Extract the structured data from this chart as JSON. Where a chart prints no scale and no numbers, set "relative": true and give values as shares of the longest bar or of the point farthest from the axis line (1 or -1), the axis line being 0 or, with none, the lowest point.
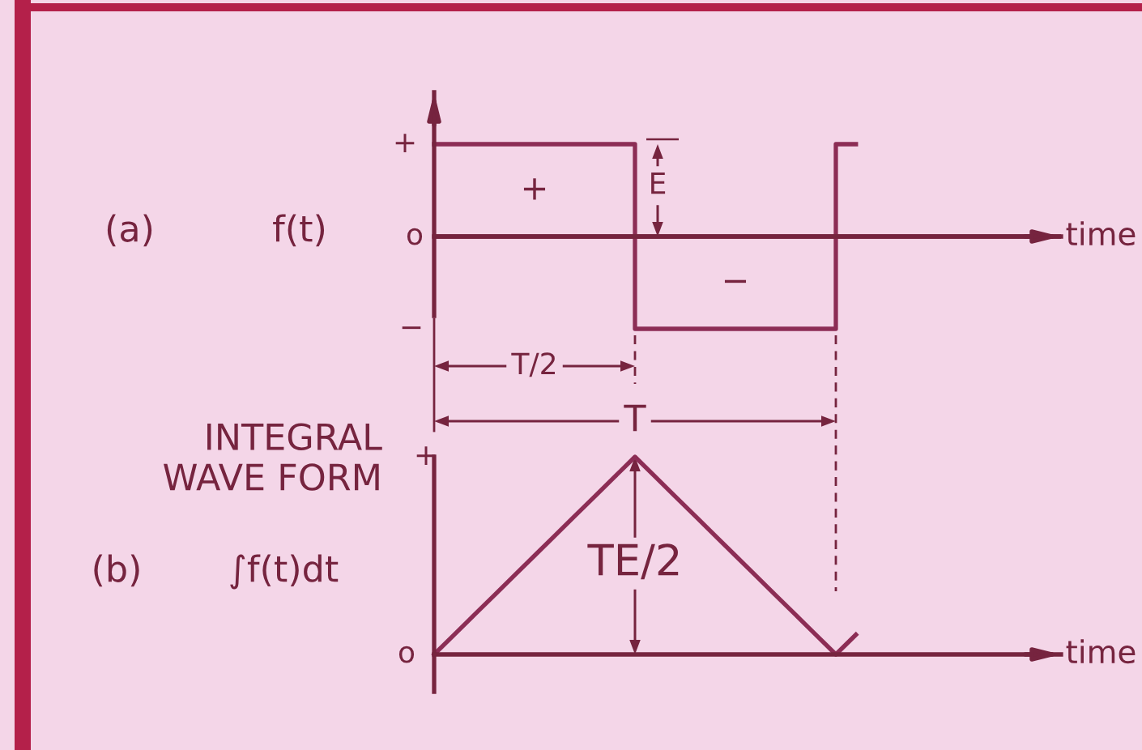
{
  "chart_data": [
    {
      "type": "step",
      "ylabel": "f(t)",
      "relative": true,
      "color": "#8c2d55",
      "categories": [
        null,
        null,
        null,
        null,
        null,
        null,
        null,
        null,
        null,
        null,
        null,
        null,
        null,
        null,
        null,
        null,
        null,
        null,
        null,
        null,
        null,
        null
      ],
      "values": [
        1,
        1,
        1,
        1,
        1,
        1,
        1,
        1,
        1,
        1,
        -1,
        -1,
        -1,
        -1,
        -1,
        -1,
        -1,
        -1,
        -1,
        -1,
        1,
        1
      ],
      "ref_lines": [
        {
          "axis": "y",
          "value": 0
        }
      ],
      "annotations": [
        "(a)",
        "+",
        "o",
        "−",
        "+",
        "−",
        "E",
        "T/2",
        "time"
      ]
    },
    {
      "type": "line",
      "subtitle": "INTEGRAL\nWAVE FORM",
      "ylabel": "∫f(t)dt",
      "relative": true,
      "color": "#8c2d55",
      "categories": [
        null,
        null,
        null,
        null,
        null,
        null,
        null,
        null,
        null,
        null,
        null,
        null,
        null,
        null,
        null,
        null,
        null,
        null,
        null,
        null,
        null,
        null
      ],
      "values": [
        0,
        0.1,
        0.2,
        0.3,
        0.4,
        0.5,
        0.6,
        0.7,
        0.8,
        0.9,
        1,
        0.9,
        0.8,
        0.7,
        0.6,
        0.5,
        0.4,
        0.3,
        0.2,
        0.1,
        0,
        0.1
      ],
      "annotations": [
        "(b)",
        "+",
        "o",
        "T",
        "TE/2",
        "time"
      ]
    }
  ]
}
